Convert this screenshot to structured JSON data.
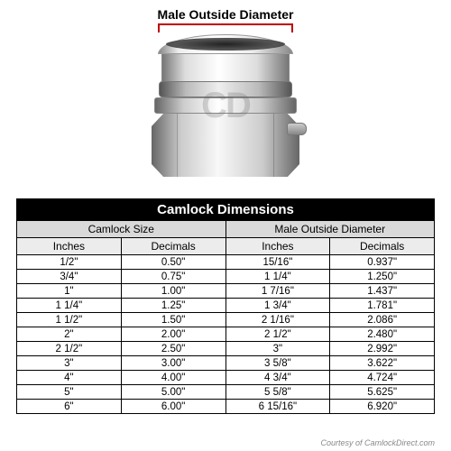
{
  "diagram": {
    "label": "Male Outside Diameter",
    "bracket_color": "#c00000",
    "watermark": "CD"
  },
  "table": {
    "title": "Camlock Dimensions",
    "group_headers": [
      "Camlock Size",
      "Male Outside Diameter"
    ],
    "column_headers": [
      "Inches",
      "Decimals",
      "Inches",
      "Decimals"
    ],
    "rows": [
      [
        "1/2\"",
        "0.50\"",
        "15/16\"",
        "0.937\""
      ],
      [
        "3/4\"",
        "0.75\"",
        "1 1/4\"",
        "1.250\""
      ],
      [
        "1\"",
        "1.00\"",
        "1 7/16\"",
        "1.437\""
      ],
      [
        "1 1/4\"",
        "1.25\"",
        "1 3/4\"",
        "1.781\""
      ],
      [
        "1 1/2\"",
        "1.50\"",
        "2 1/16\"",
        "2.086\""
      ],
      [
        "2\"",
        "2.00\"",
        "2 1/2\"",
        "2.480\""
      ],
      [
        "2 1/2\"",
        "2.50\"",
        "3\"",
        "2.992\""
      ],
      [
        "3\"",
        "3.00\"",
        "3 5/8\"",
        "3.622\""
      ],
      [
        "4\"",
        "4.00\"",
        "4 3/4\"",
        "4.724\""
      ],
      [
        "5\"",
        "5.00\"",
        "5 5/8\"",
        "5.625\""
      ],
      [
        "6\"",
        "6.00\"",
        "6 15/16\"",
        "6.920\""
      ]
    ],
    "title_bg": "#000000",
    "title_color": "#ffffff",
    "group_bg": "#d9d9d9",
    "col_bg": "#ececec",
    "border_color": "#000000",
    "font_size_title": 15,
    "font_size_header": 12,
    "font_size_cell": 11.5
  },
  "attribution": "Courtesy of CamlockDirect.com"
}
